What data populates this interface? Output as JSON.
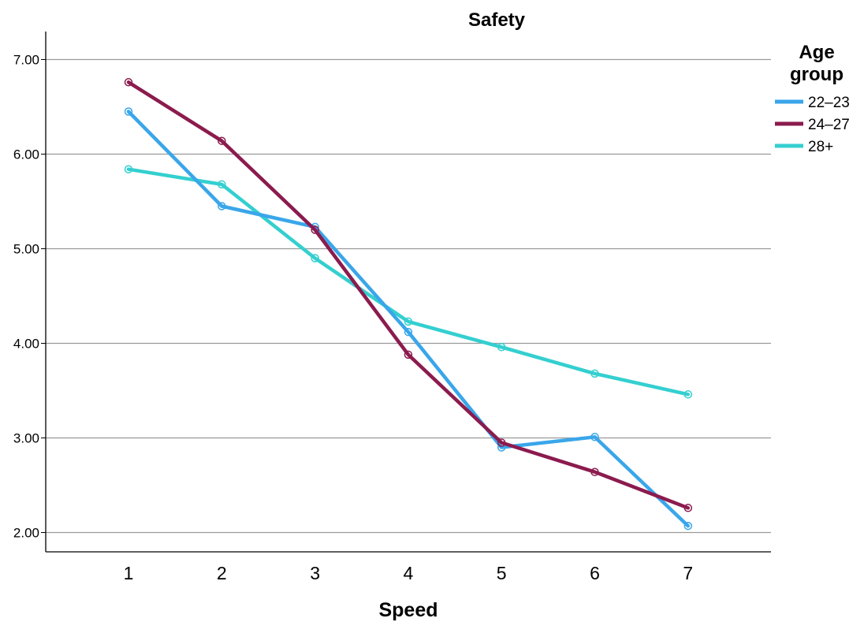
{
  "chart_data": {
    "type": "line",
    "title": "Safety",
    "xlabel": "Speed",
    "ylabel": "",
    "x": [
      1,
      2,
      3,
      4,
      5,
      6,
      7
    ],
    "x_tick_labels": [
      "1",
      "2",
      "3",
      "4",
      "5",
      "6",
      "7"
    ],
    "ylim": [
      1.95,
      7.3
    ],
    "y_ticks": [
      2,
      3,
      4,
      5,
      6,
      7
    ],
    "y_tick_labels": [
      "2.00",
      "3.00",
      "4.00",
      "5.00",
      "6.00",
      "7.00"
    ],
    "grid": true,
    "legend": {
      "title_lines": [
        "Age",
        "group"
      ],
      "placement": "right"
    },
    "series": [
      {
        "name": "22–23",
        "color": "#3aa6ea",
        "values": [
          6.45,
          5.45,
          5.23,
          4.12,
          2.9,
          3.01,
          2.07
        ]
      },
      {
        "name": "24–27",
        "color": "#8b1b4e",
        "values": [
          6.76,
          6.14,
          5.2,
          3.88,
          2.95,
          2.64,
          2.26
        ]
      },
      {
        "name": "28+",
        "color": "#34cfd0",
        "values": [
          5.84,
          5.68,
          4.9,
          4.23,
          3.96,
          3.68,
          3.46
        ]
      }
    ]
  }
}
